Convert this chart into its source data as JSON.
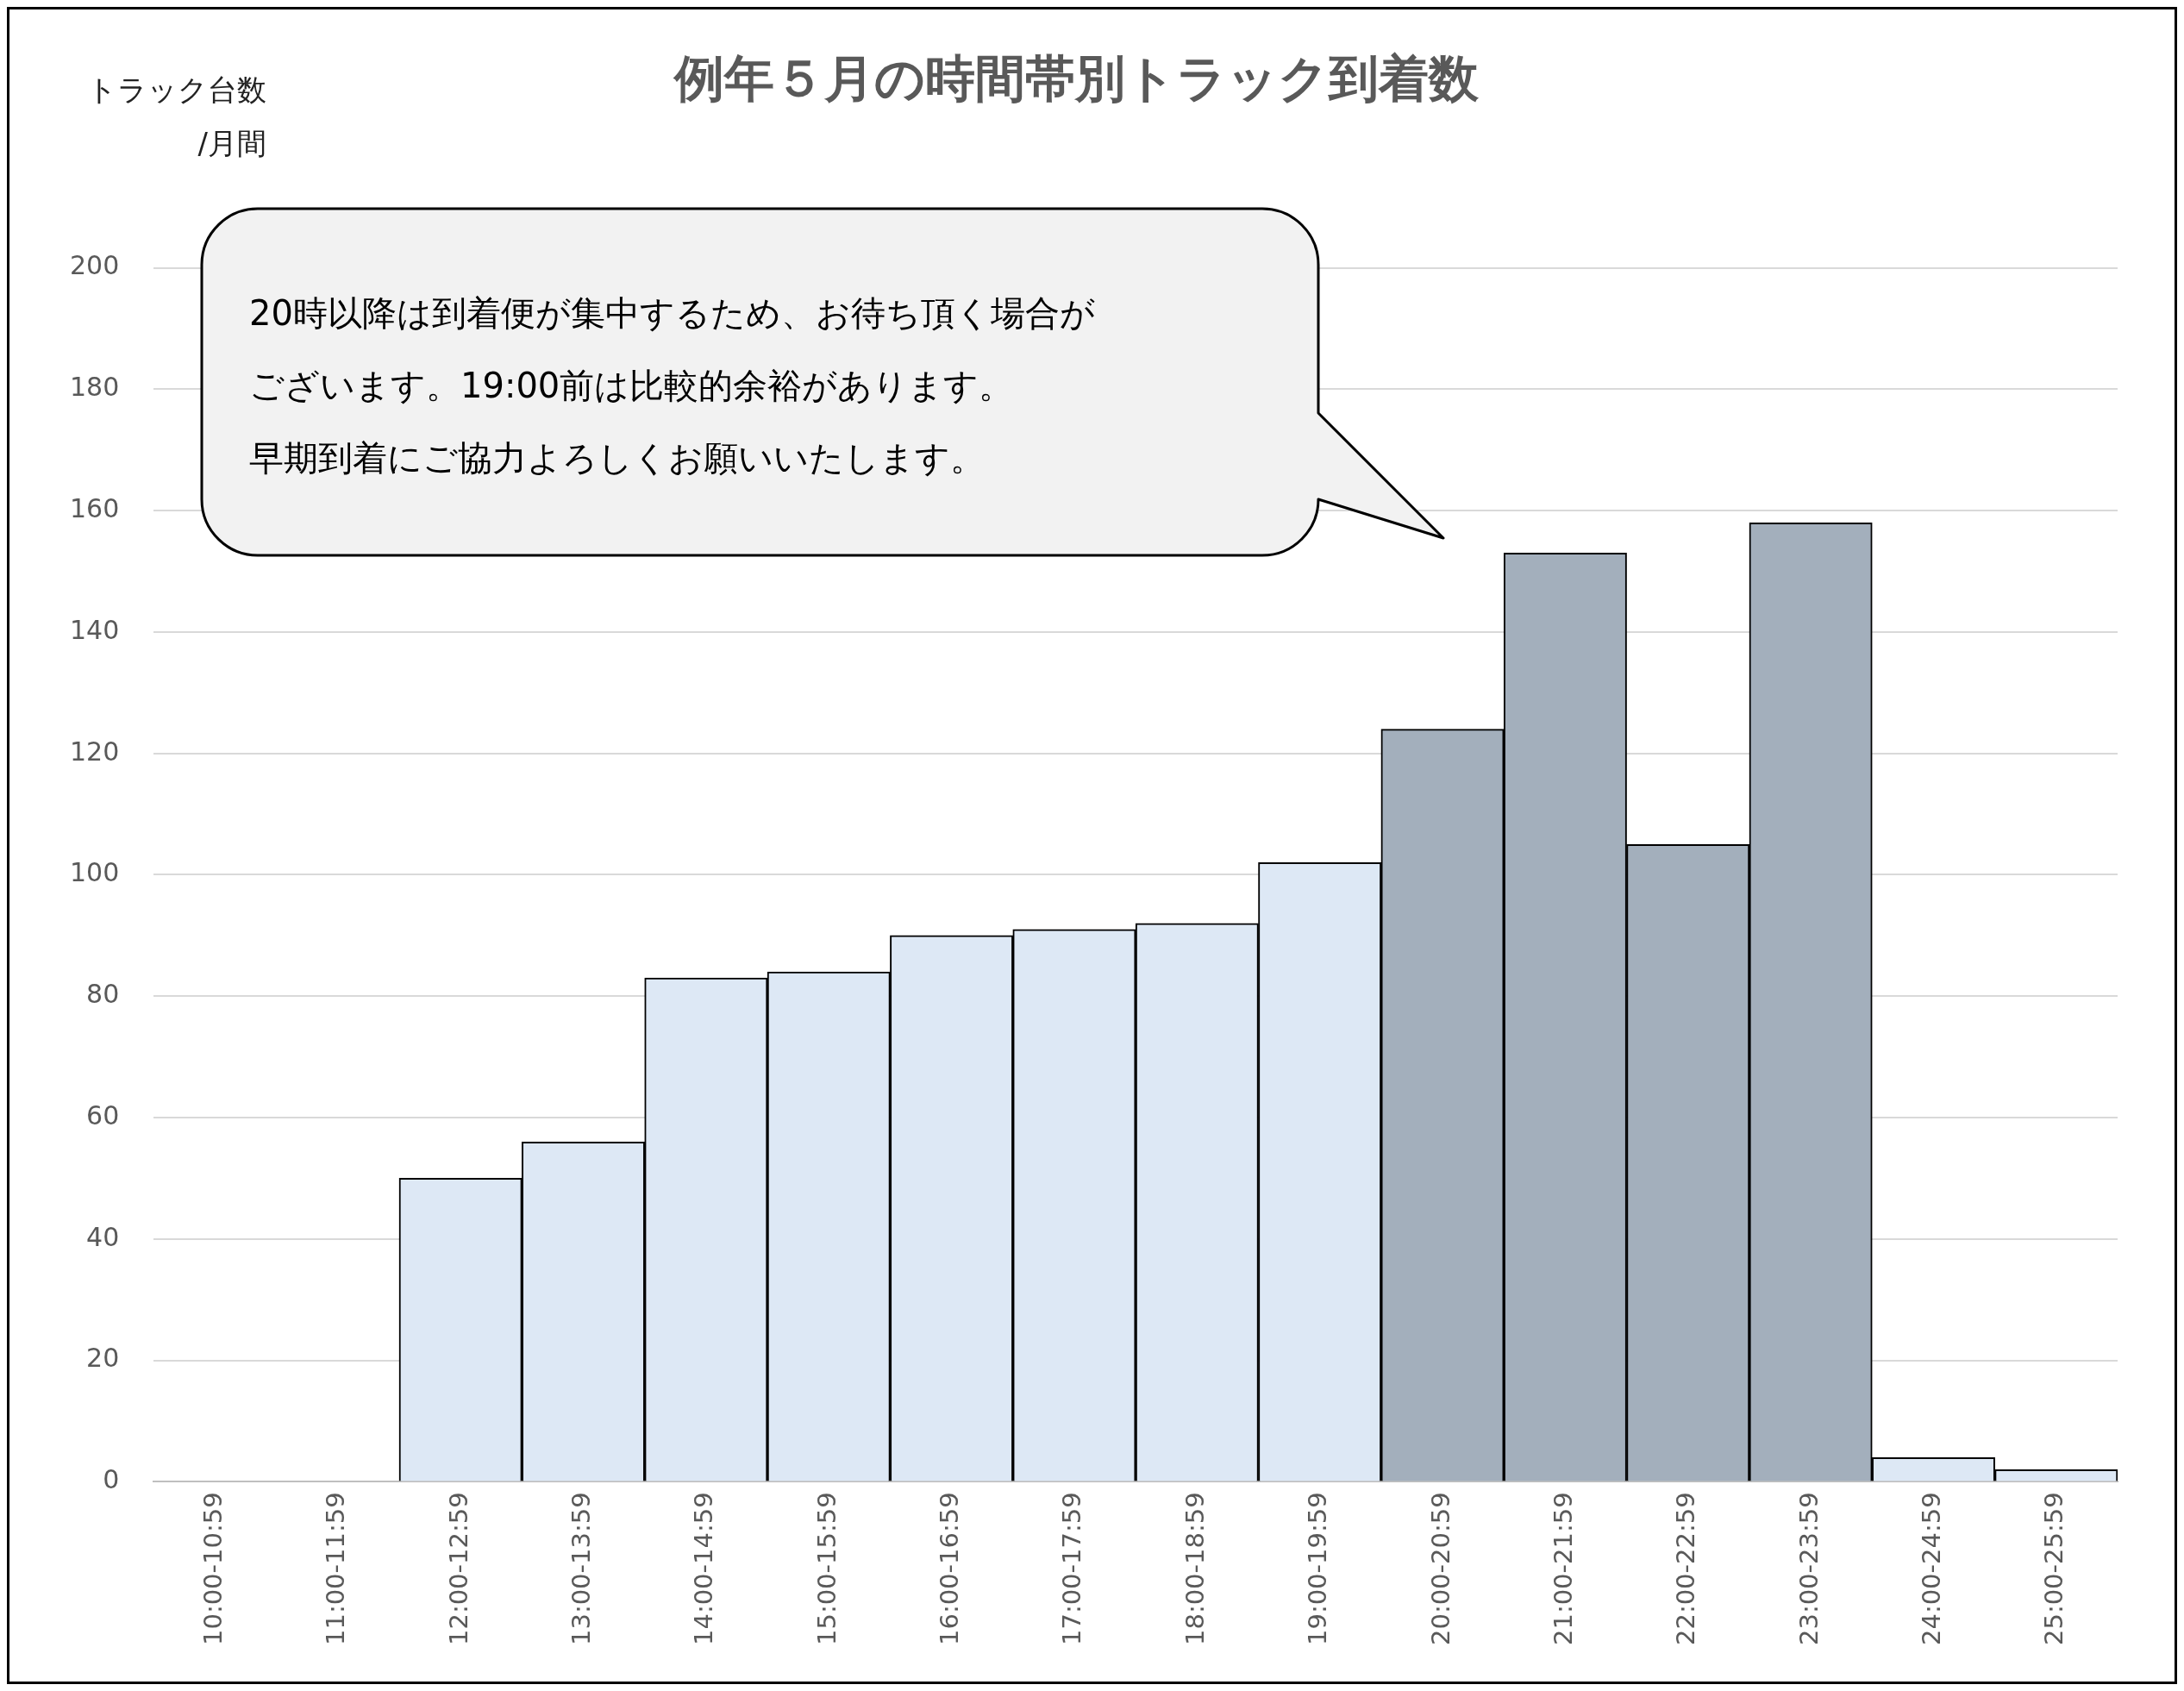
{
  "chart_data": {
    "type": "bar",
    "title": "例年５月の時間帯別トラック到着数",
    "ylabel": "トラック台数\n/月間",
    "categories": [
      "10:00-10:59",
      "11:00-11:59",
      "12:00-12:59",
      "13:00-13:59",
      "14:00-14:59",
      "15:00-15:59",
      "16:00-16:59",
      "17:00-17:59",
      "18:00-18:59",
      "19:00-19:59",
      "20:00-20:59",
      "21:00-21:59",
      "22:00-22:59",
      "23:00-23:59",
      "24:00-24:59",
      "25:00-25:59"
    ],
    "values": [
      0,
      0,
      50,
      56,
      83,
      84,
      90,
      91,
      92,
      102,
      124,
      153,
      105,
      158,
      4,
      2
    ],
    "colors": [
      "#dde8f5",
      "#dde8f5",
      "#dde8f5",
      "#dde8f5",
      "#dde8f5",
      "#dde8f5",
      "#dde8f5",
      "#dde8f5",
      "#dde8f5",
      "#dde8f5",
      "#a3afbc",
      "#a3afbc",
      "#a3afbc",
      "#a3afbc",
      "#dde8f5",
      "#dde8f5"
    ],
    "ylim": [
      0,
      200
    ],
    "yticks": [
      0,
      20,
      40,
      60,
      80,
      100,
      120,
      140,
      160,
      180,
      200
    ],
    "grid": "y",
    "annotations": [
      "20時以降は到着便が集中するため、お待ち頂く場合が",
      "ございます。19:00前は比較的余裕があります。",
      "早期到着にご協力よろしくお願いいたします。"
    ]
  }
}
